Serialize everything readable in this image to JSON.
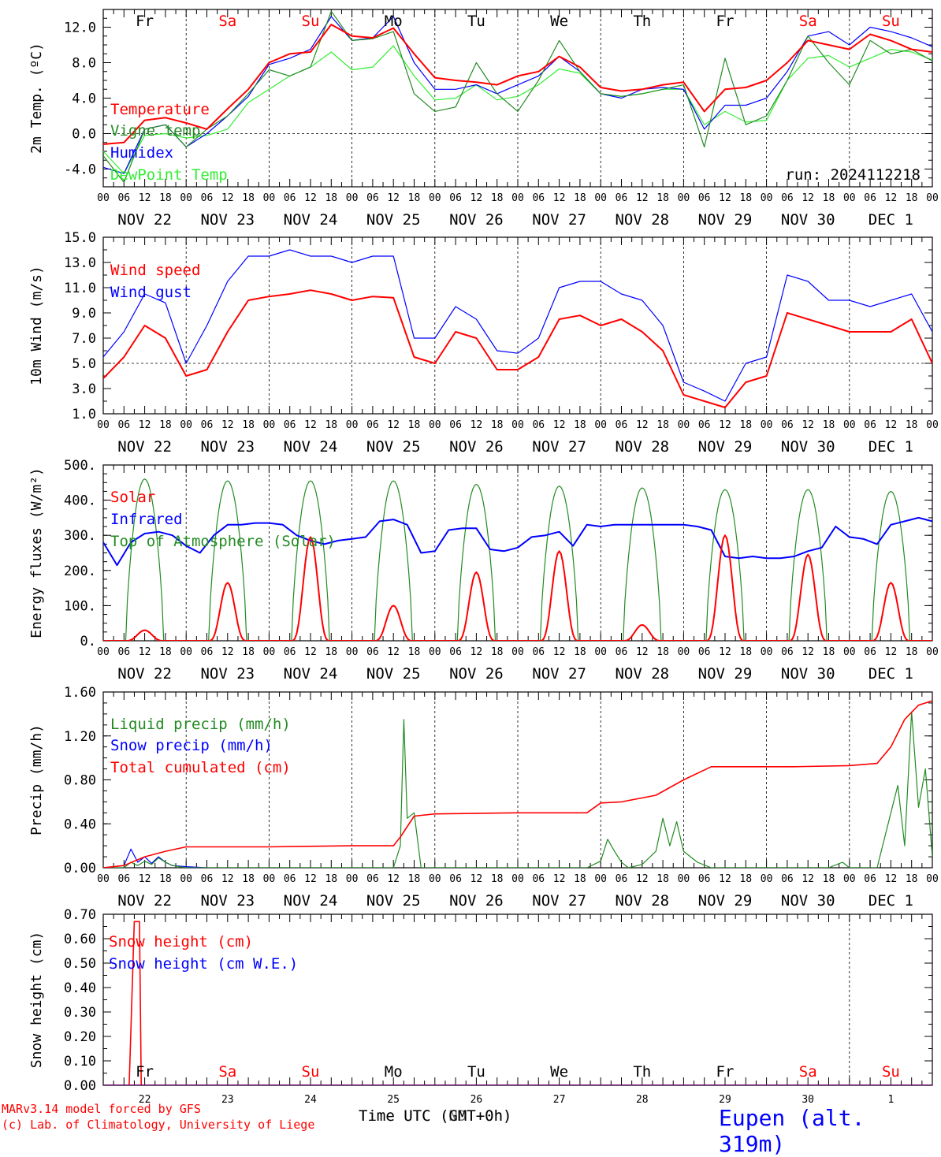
{
  "colors": {
    "red": "#ff0000",
    "green": "#228b22",
    "blue": "#0000ff",
    "lightgreen": "#33ee33",
    "dark": "#000000"
  },
  "days": [
    "Fr",
    "Sa",
    "Su",
    "Mo",
    "Tu",
    "We",
    "Th",
    "Fr",
    "Sa",
    "Su"
  ],
  "day_colors": [
    "dark",
    "red",
    "red",
    "dark",
    "dark",
    "dark",
    "dark",
    "dark",
    "red",
    "red"
  ],
  "dates": [
    "NOV 22",
    "NOV 23",
    "NOV 24",
    "NOV 25",
    "NOV 26",
    "NOV 27",
    "NOV 28",
    "NOV 29",
    "NOV 30",
    "DEC  1"
  ],
  "day_numbers": [
    "22",
    "23",
    "24",
    "25",
    "26",
    "27",
    "28",
    "29",
    "30",
    "1"
  ],
  "hour_ticks": [
    "00",
    "06",
    "12",
    "18"
  ],
  "run_label": "run: 2024112218",
  "x_axis_title": "Time UTC (GMT+0h)",
  "x_axis_overlay": "Time UTC (NDT+0h)",
  "footer": {
    "credit_line1": "MARv3.14 model forced by GFS",
    "credit_line2": "(c) Lab. of Climatology, University of Liege",
    "station": "Eupen (alt. 319m)"
  },
  "chart_data": [
    {
      "type": "line",
      "title": "",
      "ylabel": "2m Temp. (ºC)",
      "ylim": [
        -6,
        14
      ],
      "yticks": [
        "12.0",
        "8.0",
        "4.0",
        "0.0",
        "-4.0"
      ],
      "ytick_values": [
        12,
        8,
        4,
        0,
        -4
      ],
      "ref_line": 0,
      "x_hours": [
        0,
        6,
        12,
        18,
        24,
        30,
        36,
        42,
        48,
        54,
        60,
        66,
        72,
        78,
        84,
        90,
        96,
        102,
        108,
        114,
        120,
        126,
        132,
        138,
        144,
        150,
        156,
        162,
        168,
        174,
        180,
        186,
        192,
        198,
        204,
        210,
        216,
        222,
        228,
        234,
        240
      ],
      "series": [
        {
          "name": "Temperature",
          "color": "red",
          "values": [
            -1.2,
            -1.0,
            1.5,
            1.8,
            1.2,
            0.5,
            2.8,
            5.0,
            8.0,
            9.0,
            9.2,
            12.3,
            11.0,
            10.8,
            11.9,
            9.0,
            6.3,
            6.0,
            5.8,
            5.5,
            6.5,
            7.0,
            8.7,
            7.5,
            5.2,
            4.8,
            5.0,
            5.5,
            5.8,
            2.5,
            5.0,
            5.2,
            6.0,
            8.0,
            10.5,
            10.0,
            9.5,
            11.2,
            10.5,
            9.5,
            9.2
          ]
        },
        {
          "name": "Vigne temp",
          "color": "green",
          "values": [
            -2.5,
            -5.5,
            0.5,
            1.0,
            -1.5,
            0.5,
            2.0,
            4.5,
            7.2,
            6.5,
            7.5,
            13.8,
            10.5,
            10.7,
            11.5,
            4.5,
            2.5,
            3.0,
            8.0,
            4.5,
            2.5,
            6.0,
            10.5,
            7.0,
            4.5,
            4.2,
            4.5,
            5.0,
            5.5,
            -1.5,
            8.5,
            1.0,
            2.0,
            6.0,
            11.0,
            8.0,
            5.5,
            10.5,
            9.0,
            9.5,
            8.2
          ]
        },
        {
          "name": "Humidex",
          "color": "blue",
          "values": [
            -3.8,
            -4.5,
            0.5,
            1.0,
            -1.5,
            0.0,
            2.0,
            4.2,
            7.8,
            8.5,
            9.5,
            13.2,
            10.5,
            10.8,
            13.2,
            8.0,
            5.0,
            5.0,
            5.5,
            4.5,
            5.5,
            6.5,
            8.7,
            7.0,
            4.5,
            4.0,
            5.0,
            5.2,
            5.0,
            0.5,
            3.2,
            3.2,
            4.0,
            7.0,
            11.0,
            11.5,
            10.0,
            12.0,
            11.5,
            10.8,
            9.8
          ]
        },
        {
          "name": "DewPoint Temp",
          "color": "lightgreen",
          "values": [
            -2.0,
            -4.5,
            -0.2,
            0.0,
            -0.5,
            -0.2,
            0.5,
            3.5,
            5.0,
            6.5,
            7.5,
            9.2,
            7.2,
            7.5,
            9.9,
            6.5,
            3.8,
            4.0,
            5.5,
            3.8,
            4.2,
            5.5,
            7.3,
            6.8,
            4.5,
            4.2,
            4.5,
            5.0,
            5.0,
            1.0,
            2.5,
            1.3,
            1.5,
            6.0,
            8.5,
            8.8,
            7.5,
            8.5,
            9.5,
            9.2,
            8.3
          ]
        }
      ]
    },
    {
      "type": "line",
      "title": "",
      "ylabel": "10m Wind (m/s)",
      "ylim": [
        1,
        15
      ],
      "yticks": [
        "15.0",
        "13.0",
        "11.0",
        "9.0",
        "7.0",
        "5.0",
        "3.0",
        "1.0"
      ],
      "ytick_values": [
        15,
        13,
        11,
        9,
        7,
        5,
        3,
        1
      ],
      "ref_line": 5,
      "x_hours": [
        0,
        6,
        12,
        18,
        24,
        30,
        36,
        42,
        48,
        54,
        60,
        66,
        72,
        78,
        84,
        90,
        96,
        102,
        108,
        114,
        120,
        126,
        132,
        138,
        144,
        150,
        156,
        162,
        168,
        174,
        180,
        186,
        192,
        198,
        204,
        210,
        216,
        222,
        228,
        234,
        240
      ],
      "series": [
        {
          "name": "Wind speed",
          "color": "red",
          "values": [
            3.8,
            5.5,
            8.0,
            7.0,
            4.0,
            4.5,
            7.5,
            10.0,
            10.3,
            10.5,
            10.8,
            10.5,
            10.0,
            10.3,
            10.2,
            5.5,
            5.0,
            7.5,
            7.0,
            4.5,
            4.5,
            5.5,
            8.5,
            8.8,
            8.0,
            8.5,
            7.5,
            6.0,
            2.5,
            2.0,
            1.5,
            3.5,
            4.0,
            9.0,
            8.5,
            8.0,
            7.5,
            7.5,
            7.5,
            8.5,
            5.0
          ]
        },
        {
          "name": "Wind gust",
          "color": "blue",
          "values": [
            5.5,
            7.5,
            10.5,
            9.8,
            5.0,
            8.0,
            11.5,
            13.5,
            13.5,
            14.0,
            13.5,
            13.5,
            13.0,
            13.5,
            13.5,
            7.0,
            7.0,
            9.5,
            8.5,
            6.0,
            5.8,
            7.0,
            11.0,
            11.5,
            11.5,
            10.5,
            10.0,
            8.0,
            3.5,
            2.8,
            2.0,
            5.0,
            5.5,
            12.0,
            11.5,
            10.0,
            10.0,
            9.5,
            10.0,
            10.5,
            7.5
          ]
        }
      ]
    },
    {
      "type": "line",
      "title": "",
      "ylabel": "Energy fluxes (W/m²)",
      "ylim": [
        0,
        500
      ],
      "yticks": [
        "500.",
        "400.",
        "300.",
        "200.",
        "100.",
        "0."
      ],
      "ytick_values": [
        500,
        400,
        300,
        200,
        100,
        0
      ],
      "toa_peaks": [
        460,
        455,
        455,
        455,
        445,
        440,
        435,
        430,
        430,
        425
      ],
      "solar_peaks": [
        30,
        165,
        295,
        100,
        195,
        255,
        45,
        300,
        245,
        165
      ],
      "infrared": {
        "x_hours": [
          0,
          4,
          8,
          12,
          16,
          20,
          24,
          28,
          32,
          36,
          40,
          44,
          48,
          52,
          56,
          60,
          64,
          68,
          72,
          76,
          80,
          84,
          88,
          92,
          96,
          100,
          104,
          108,
          112,
          116,
          120,
          124,
          128,
          132,
          136,
          140,
          144,
          148,
          152,
          156,
          160,
          164,
          168,
          172,
          176,
          180,
          184,
          188,
          192,
          196,
          200,
          204,
          208,
          212,
          216,
          220,
          224,
          228,
          232,
          236,
          240
        ],
        "values": [
          280,
          215,
          280,
          305,
          310,
          300,
          270,
          250,
          300,
          330,
          330,
          335,
          335,
          330,
          300,
          285,
          275,
          285,
          290,
          295,
          340,
          345,
          330,
          250,
          255,
          315,
          320,
          320,
          260,
          255,
          265,
          295,
          300,
          310,
          270,
          330,
          325,
          330,
          330,
          330,
          330,
          330,
          330,
          325,
          315,
          240,
          235,
          240,
          235,
          235,
          240,
          255,
          265,
          325,
          295,
          290,
          275,
          330,
          340,
          350,
          340
        ]
      },
      "series": [
        {
          "name": "Solar",
          "color": "red"
        },
        {
          "name": "Infrared",
          "color": "blue"
        },
        {
          "name": "Top of Atmosphere (Solar)",
          "color": "green"
        }
      ]
    },
    {
      "type": "line",
      "title": "",
      "ylabel": "Precip (mm/h)",
      "ylim": [
        0,
        1.6
      ],
      "yticks": [
        "1.60",
        "1.20",
        "0.80",
        "0.40",
        "0.00"
      ],
      "ytick_values": [
        1.6,
        1.2,
        0.8,
        0.4,
        0.0
      ],
      "series": [
        {
          "name": "Liquid precip (mm/h)",
          "color": "green",
          "x_hours": [
            0,
            6,
            8,
            10,
            12,
            14,
            16,
            18,
            20,
            24,
            84,
            86,
            87,
            88,
            90,
            92,
            94,
            96,
            100,
            140,
            144,
            146,
            148,
            150,
            152,
            156,
            160,
            162,
            164,
            166,
            168,
            170,
            172,
            176,
            180,
            200,
            210,
            214,
            216,
            220,
            224,
            228,
            230,
            232,
            234,
            236,
            238,
            240
          ],
          "values": [
            0,
            0,
            0.05,
            0.02,
            0.06,
            0.03,
            0.09,
            0.05,
            0.02,
            0,
            0,
            0.2,
            1.35,
            0.45,
            0.5,
            0,
            0,
            0,
            0,
            0,
            0.06,
            0.26,
            0.15,
            0.05,
            0.0,
            0.03,
            0.15,
            0.45,
            0.2,
            0.42,
            0.15,
            0.1,
            0.05,
            0,
            0,
            0,
            0,
            0.05,
            0,
            0,
            0,
            0.5,
            0.75,
            0.2,
            1.42,
            0.55,
            0.9,
            0.1
          ]
        },
        {
          "name": "Snow precip (mm/h)",
          "color": "blue",
          "x_hours": [
            0,
            6,
            8,
            10,
            12,
            14,
            16,
            18,
            20,
            24,
            30
          ],
          "values": [
            0,
            0.02,
            0.17,
            0.05,
            0.1,
            0.04,
            0.1,
            0.05,
            0.02,
            0.01,
            0
          ]
        },
        {
          "name": "Total cumulated (cm)",
          "color": "red",
          "x_hours": [
            0,
            6,
            12,
            18,
            24,
            48,
            72,
            84,
            86,
            90,
            96,
            120,
            140,
            144,
            150,
            160,
            168,
            176,
            200,
            216,
            224,
            228,
            232,
            236,
            240
          ],
          "values": [
            0,
            0.02,
            0.1,
            0.15,
            0.19,
            0.19,
            0.2,
            0.2,
            0.28,
            0.47,
            0.49,
            0.5,
            0.5,
            0.59,
            0.6,
            0.66,
            0.8,
            0.92,
            0.92,
            0.93,
            0.95,
            1.1,
            1.35,
            1.48,
            1.52
          ]
        }
      ]
    },
    {
      "type": "line",
      "title": "",
      "ylabel": "Snow height (cm)",
      "ylim": [
        0,
        0.7
      ],
      "yticks": [
        "0.70",
        "0.60",
        "0.50",
        "0.40",
        "0.30",
        "0.20",
        "0.10",
        "0.00"
      ],
      "ytick_values": [
        0.7,
        0.6,
        0.5,
        0.4,
        0.3,
        0.2,
        0.1,
        0.0
      ],
      "series": [
        {
          "name": "Snow height (cm)",
          "color": "red",
          "x_hours": [
            0,
            7.5,
            9,
            10.5,
            11,
            12,
            240
          ],
          "values": [
            0,
            0,
            0.67,
            0.67,
            0,
            0,
            0
          ]
        },
        {
          "name": "Snow height (cm W.E.)",
          "color": "blue",
          "x_hours": [
            0,
            240
          ],
          "values": [
            0,
            0
          ]
        }
      ]
    }
  ]
}
